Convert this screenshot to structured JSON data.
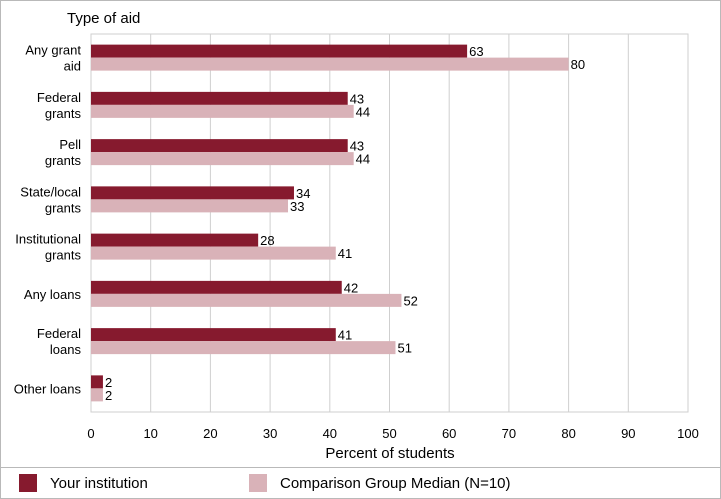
{
  "chart_data": {
    "type": "bar",
    "orientation": "horizontal",
    "title": "Type of aid",
    "xlabel": "Percent of students",
    "ylabel": "",
    "xlim": [
      0,
      100
    ],
    "x_ticks": [
      0,
      10,
      20,
      30,
      40,
      50,
      60,
      70,
      80,
      90,
      100
    ],
    "grid": true,
    "legend_position": "bottom",
    "categories": [
      [
        "Any grant",
        "aid"
      ],
      [
        "Federal",
        "grants"
      ],
      [
        "Pell",
        "grants"
      ],
      [
        "State/local",
        "grants"
      ],
      [
        "Institutional",
        "grants"
      ],
      [
        "Any loans"
      ],
      [
        "Federal",
        "loans"
      ],
      [
        "Other loans"
      ]
    ],
    "series": [
      {
        "name": "Your institution",
        "color": "#861a2e",
        "values": [
          63,
          43,
          43,
          34,
          28,
          42,
          41,
          2
        ]
      },
      {
        "name": "Comparison Group Median (N=10)",
        "color": "#d9b2b8",
        "values": [
          80,
          44,
          44,
          33,
          41,
          52,
          51,
          2
        ]
      }
    ]
  }
}
